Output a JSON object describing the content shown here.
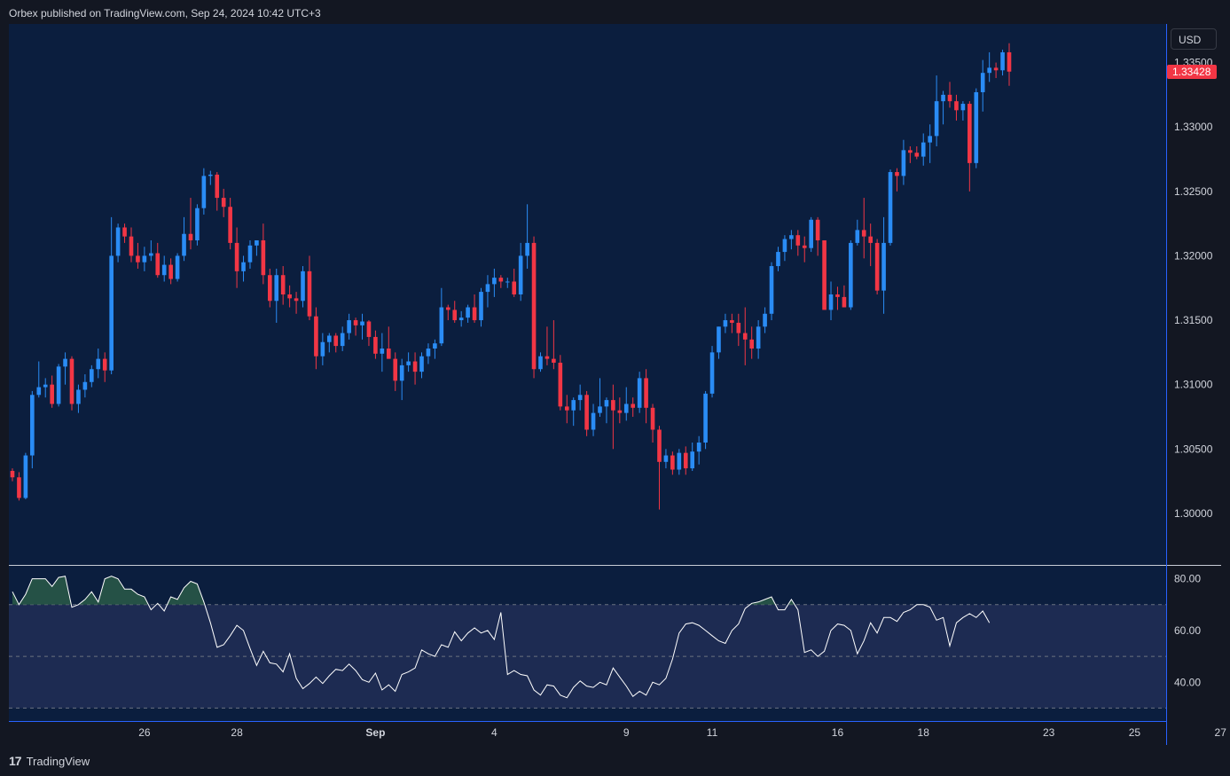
{
  "header": {
    "text": "Orbex published on TradingView.com, Sep 24, 2024 10:42 UTC+3"
  },
  "currency": "USD",
  "footer": {
    "logo": "17",
    "brand": "TradingView"
  },
  "colors": {
    "background": "#131722",
    "pane": "#0b1e3e",
    "up": "#2a8cf5",
    "down": "#f23645",
    "axis_line": "#2962ff",
    "rsi_line": "#ffffff",
    "rsi_band": "#1d2b52",
    "rsi_fill": "#2a5a48"
  },
  "chart_data": [
    {
      "type": "candlestick",
      "symbol_pair": "GBP/USD",
      "last_price_label": "1.33428",
      "ylim": [
        1.296,
        1.338
      ],
      "y_ticks": [
        "1.30000",
        "1.30500",
        "1.31000",
        "1.31500",
        "1.32000",
        "1.32500",
        "1.33000",
        "1.33500"
      ],
      "x_tick_labels": [
        "26",
        "28",
        "Sep",
        "4",
        "9",
        "11",
        "16",
        "18",
        "23",
        "25",
        "27"
      ],
      "candles": [
        [
          1.3033,
          1.3035,
          1.3025,
          1.3028
        ],
        [
          1.3028,
          1.3032,
          1.301,
          1.3012
        ],
        [
          1.3012,
          1.3047,
          1.3011,
          1.3045
        ],
        [
          1.3045,
          1.3095,
          1.3035,
          1.3092
        ],
        [
          1.3092,
          1.3118,
          1.309,
          1.3098
        ],
        [
          1.3098,
          1.3105,
          1.309,
          1.31
        ],
        [
          1.31,
          1.3107,
          1.3082,
          1.3085
        ],
        [
          1.3085,
          1.3116,
          1.3083,
          1.3114
        ],
        [
          1.3114,
          1.3125,
          1.31,
          1.312
        ],
        [
          1.312,
          1.3122,
          1.308,
          1.3085
        ],
        [
          1.3085,
          1.31,
          1.3078,
          1.3096
        ],
        [
          1.3096,
          1.3108,
          1.309,
          1.3102
        ],
        [
          1.3102,
          1.3115,
          1.3098,
          1.3112
        ],
        [
          1.3112,
          1.3128,
          1.3105,
          1.312
        ],
        [
          1.312,
          1.3125,
          1.3102,
          1.3111
        ],
        [
          1.3111,
          1.323,
          1.3108,
          1.32
        ],
        [
          1.32,
          1.3225,
          1.3195,
          1.3222
        ],
        [
          1.3222,
          1.3225,
          1.321,
          1.3215
        ],
        [
          1.3215,
          1.3222,
          1.3195,
          1.32
        ],
        [
          1.32,
          1.321,
          1.319,
          1.3195
        ],
        [
          1.3195,
          1.3207,
          1.3188,
          1.32
        ],
        [
          1.32,
          1.3212,
          1.3196,
          1.3202
        ],
        [
          1.3202,
          1.321,
          1.3183,
          1.3185
        ],
        [
          1.3185,
          1.32,
          1.318,
          1.3193
        ],
        [
          1.3193,
          1.3198,
          1.3178,
          1.3182
        ],
        [
          1.3182,
          1.3202,
          1.318,
          1.32
        ],
        [
          1.32,
          1.323,
          1.3196,
          1.3217
        ],
        [
          1.3217,
          1.3245,
          1.3205,
          1.3212
        ],
        [
          1.3212,
          1.324,
          1.3208,
          1.3237
        ],
        [
          1.3237,
          1.3268,
          1.3232,
          1.3262
        ],
        [
          1.3262,
          1.3266,
          1.3255,
          1.3263
        ],
        [
          1.3263,
          1.3265,
          1.3235,
          1.3245
        ],
        [
          1.3245,
          1.3252,
          1.323,
          1.3238
        ],
        [
          1.3238,
          1.3245,
          1.3205,
          1.321
        ],
        [
          1.321,
          1.3222,
          1.3175,
          1.3188
        ],
        [
          1.3188,
          1.32,
          1.318,
          1.3195
        ],
        [
          1.3195,
          1.3212,
          1.319,
          1.3208
        ],
        [
          1.3208,
          1.3212,
          1.32,
          1.3212
        ],
        [
          1.3212,
          1.3225,
          1.3178,
          1.3185
        ],
        [
          1.3185,
          1.319,
          1.316,
          1.3165
        ],
        [
          1.3165,
          1.319,
          1.3148,
          1.3185
        ],
        [
          1.3185,
          1.3192,
          1.3162,
          1.317
        ],
        [
          1.317,
          1.3177,
          1.316,
          1.3167
        ],
        [
          1.3167,
          1.3172,
          1.3155,
          1.3165
        ],
        [
          1.3165,
          1.3192,
          1.316,
          1.3188
        ],
        [
          1.3188,
          1.32,
          1.315,
          1.3153
        ],
        [
          1.3153,
          1.316,
          1.3112,
          1.3122
        ],
        [
          1.3122,
          1.314,
          1.3115,
          1.3133
        ],
        [
          1.3133,
          1.314,
          1.3125,
          1.3138
        ],
        [
          1.3138,
          1.314,
          1.3125,
          1.313
        ],
        [
          1.313,
          1.3145,
          1.3126,
          1.314
        ],
        [
          1.314,
          1.3155,
          1.3135,
          1.315
        ],
        [
          1.315,
          1.3152,
          1.3138,
          1.3146
        ],
        [
          1.3146,
          1.3155,
          1.3135,
          1.3149
        ],
        [
          1.3149,
          1.315,
          1.313,
          1.3137
        ],
        [
          1.3137,
          1.3142,
          1.312,
          1.3124
        ],
        [
          1.3124,
          1.314,
          1.311,
          1.3128
        ],
        [
          1.3128,
          1.3145,
          1.312,
          1.312
        ],
        [
          1.312,
          1.3125,
          1.3095,
          1.3103
        ],
        [
          1.3103,
          1.312,
          1.3088,
          1.3115
        ],
        [
          1.3115,
          1.3125,
          1.311,
          1.3118
        ],
        [
          1.3118,
          1.3125,
          1.31,
          1.311
        ],
        [
          1.311,
          1.3125,
          1.3105,
          1.3122
        ],
        [
          1.3122,
          1.3132,
          1.3116,
          1.3128
        ],
        [
          1.3128,
          1.3135,
          1.312,
          1.3132
        ],
        [
          1.3132,
          1.3175,
          1.313,
          1.316
        ],
        [
          1.316,
          1.3162,
          1.315,
          1.3158
        ],
        [
          1.3158,
          1.3165,
          1.3148,
          1.315
        ],
        [
          1.315,
          1.3157,
          1.3145,
          1.3152
        ],
        [
          1.3152,
          1.3162,
          1.3148,
          1.316
        ],
        [
          1.316,
          1.317,
          1.3148,
          1.315
        ],
        [
          1.315,
          1.3175,
          1.3145,
          1.3172
        ],
        [
          1.3172,
          1.3185,
          1.316,
          1.3178
        ],
        [
          1.3178,
          1.319,
          1.3168,
          1.3183
        ],
        [
          1.3183,
          1.3185,
          1.3175,
          1.318
        ],
        [
          1.318,
          1.3183,
          1.3175,
          1.318
        ],
        [
          1.318,
          1.319,
          1.3168,
          1.317
        ],
        [
          1.317,
          1.321,
          1.3165,
          1.32
        ],
        [
          1.32,
          1.324,
          1.319,
          1.321
        ],
        [
          1.321,
          1.3215,
          1.3105,
          1.3112
        ],
        [
          1.3112,
          1.3125,
          1.311,
          1.3122
        ],
        [
          1.3122,
          1.3145,
          1.3115,
          1.312
        ],
        [
          1.312,
          1.315,
          1.3112,
          1.3117
        ],
        [
          1.3117,
          1.3123,
          1.308,
          1.3083
        ],
        [
          1.3083,
          1.3092,
          1.307,
          1.308
        ],
        [
          1.308,
          1.309,
          1.3068,
          1.3088
        ],
        [
          1.3088,
          1.31,
          1.308,
          1.3092
        ],
        [
          1.3092,
          1.3095,
          1.306,
          1.3065
        ],
        [
          1.3065,
          1.3085,
          1.306,
          1.3078
        ],
        [
          1.3078,
          1.3105,
          1.3075,
          1.3083
        ],
        [
          1.3083,
          1.309,
          1.307,
          1.3088
        ],
        [
          1.3088,
          1.31,
          1.305,
          1.308
        ],
        [
          1.308,
          1.309,
          1.307,
          1.3078
        ],
        [
          1.3078,
          1.3098,
          1.3072,
          1.3085
        ],
        [
          1.3085,
          1.309,
          1.3075,
          1.3082
        ],
        [
          1.3082,
          1.311,
          1.3078,
          1.3105
        ],
        [
          1.3105,
          1.3112,
          1.307,
          1.3082
        ],
        [
          1.3082,
          1.3085,
          1.3055,
          1.3065
        ],
        [
          1.3065,
          1.3068,
          1.3003,
          1.304
        ],
        [
          1.304,
          1.305,
          1.3035,
          1.3045
        ],
        [
          1.3045,
          1.3048,
          1.303,
          1.3034
        ],
        [
          1.3034,
          1.305,
          1.303,
          1.3047
        ],
        [
          1.3047,
          1.3052,
          1.303,
          1.3035
        ],
        [
          1.3035,
          1.3055,
          1.3033,
          1.3048
        ],
        [
          1.3048,
          1.306,
          1.3038,
          1.3055
        ],
        [
          1.3055,
          1.3095,
          1.305,
          1.3093
        ],
        [
          1.3093,
          1.313,
          1.309,
          1.3125
        ],
        [
          1.3125,
          1.3145,
          1.312,
          1.3145
        ],
        [
          1.3145,
          1.3155,
          1.314,
          1.315
        ],
        [
          1.315,
          1.3155,
          1.314,
          1.3148
        ],
        [
          1.3148,
          1.3155,
          1.313,
          1.314
        ],
        [
          1.314,
          1.316,
          1.3115,
          1.3135
        ],
        [
          1.3135,
          1.3145,
          1.312,
          1.3128
        ],
        [
          1.3128,
          1.315,
          1.312,
          1.3145
        ],
        [
          1.3145,
          1.316,
          1.314,
          1.3155
        ],
        [
          1.3155,
          1.3195,
          1.315,
          1.3192
        ],
        [
          1.3192,
          1.3207,
          1.3188,
          1.3203
        ],
        [
          1.3203,
          1.3216,
          1.3196,
          1.3213
        ],
        [
          1.3213,
          1.322,
          1.3205,
          1.3216
        ],
        [
          1.3216,
          1.322,
          1.32,
          1.3208
        ],
        [
          1.3208,
          1.3215,
          1.3195,
          1.3206
        ],
        [
          1.3206,
          1.323,
          1.3203,
          1.3228
        ],
        [
          1.3228,
          1.323,
          1.32,
          1.3212
        ],
        [
          1.3212,
          1.321,
          1.316,
          1.3158
        ],
        [
          1.3158,
          1.318,
          1.315,
          1.317
        ],
        [
          1.317,
          1.3176,
          1.3158,
          1.3168
        ],
        [
          1.3168,
          1.3177,
          1.316,
          1.316
        ],
        [
          1.316,
          1.3212,
          1.3158,
          1.321
        ],
        [
          1.321,
          1.3228,
          1.3208,
          1.322
        ],
        [
          1.322,
          1.3245,
          1.3198,
          1.3215
        ],
        [
          1.3215,
          1.3225,
          1.3192,
          1.321
        ],
        [
          1.321,
          1.3213,
          1.317,
          1.3173
        ],
        [
          1.3173,
          1.323,
          1.3155,
          1.321
        ],
        [
          1.321,
          1.3267,
          1.3208,
          1.3265
        ],
        [
          1.3265,
          1.3268,
          1.325,
          1.3262
        ],
        [
          1.3262,
          1.329,
          1.3255,
          1.3282
        ],
        [
          1.3282,
          1.3285,
          1.3272,
          1.328
        ],
        [
          1.328,
          1.3285,
          1.3275,
          1.3277
        ],
        [
          1.3277,
          1.3295,
          1.327,
          1.3288
        ],
        [
          1.3288,
          1.3302,
          1.3272,
          1.3293
        ],
        [
          1.3293,
          1.334,
          1.3285,
          1.332
        ],
        [
          1.332,
          1.3328,
          1.3302,
          1.3325
        ],
        [
          1.3325,
          1.3335,
          1.3315,
          1.332
        ],
        [
          1.332,
          1.3325,
          1.3305,
          1.3313
        ],
        [
          1.3313,
          1.332,
          1.3305,
          1.3318
        ],
        [
          1.3318,
          1.332,
          1.325,
          1.3272
        ],
        [
          1.3272,
          1.333,
          1.3268,
          1.3327
        ],
        [
          1.3327,
          1.3352,
          1.3312,
          1.3342
        ],
        [
          1.3342,
          1.3358,
          1.3335,
          1.3346
        ],
        [
          1.3346,
          1.335,
          1.3338,
          1.3344
        ],
        [
          1.3344,
          1.336,
          1.334,
          1.3358
        ],
        [
          1.3358,
          1.3365,
          1.3332,
          1.3343
        ]
      ]
    },
    {
      "type": "line",
      "indicator": "RSI",
      "ylim": [
        25,
        85
      ],
      "y_ticks": [
        "40.00",
        "60.00",
        "80.00"
      ],
      "levels": [
        70,
        50,
        30
      ],
      "values": [
        75.0,
        70.0,
        74.0,
        80.0,
        80.0,
        80.0,
        77.0,
        80.5,
        81.0,
        69.0,
        70.0,
        72.0,
        75.0,
        71.0,
        80.0,
        81.0,
        80.0,
        76.0,
        76.0,
        74.0,
        73.0,
        68.0,
        70.5,
        67.5,
        73.0,
        72.0,
        76.5,
        79.0,
        78.0,
        71.0,
        63.0,
        53.5,
        54.5,
        58.0,
        62.0,
        60.0,
        53.0,
        46.5,
        52.0,
        47.5,
        47.0,
        44.0,
        51.0,
        41.5,
        37.5,
        39.5,
        42.0,
        39.5,
        42.5,
        45.0,
        44.5,
        47.0,
        44.5,
        41.0,
        40.0,
        43.5,
        37.0,
        39.0,
        36.5,
        43.0,
        44.0,
        45.5,
        52.5,
        51.0,
        50.0,
        54.5,
        53.5,
        59.5,
        56.0,
        59.0,
        61.0,
        59.0,
        60.0,
        56.5,
        67.0,
        43.0,
        44.5,
        43.0,
        42.5,
        37.0,
        35.0,
        39.0,
        38.5,
        35.0,
        34.0,
        38.0,
        40.5,
        38.5,
        38.0,
        40.0,
        39.0,
        45.5,
        42.0,
        38.5,
        34.5,
        36.5,
        35.0,
        40.0,
        39.0,
        41.5,
        49.0,
        59.0,
        62.5,
        63.0,
        62.0,
        60.0,
        58.0,
        56.0,
        55.0,
        60.0,
        62.5,
        68.5,
        70.5,
        71.0,
        72.0,
        73.0,
        68.0,
        68.0,
        72.0,
        68.0,
        51.5,
        52.5,
        50.0,
        52.0,
        60.0,
        62.5,
        62.0,
        60.0,
        51.0,
        56.0,
        63.0,
        59.0,
        65.0,
        65.0,
        63.5,
        67.0,
        68.0,
        70.0,
        70.0,
        69.0,
        64.0,
        65.0,
        54.0,
        63.0,
        65.0,
        66.5,
        65.0,
        67.5,
        63.0
      ]
    }
  ]
}
